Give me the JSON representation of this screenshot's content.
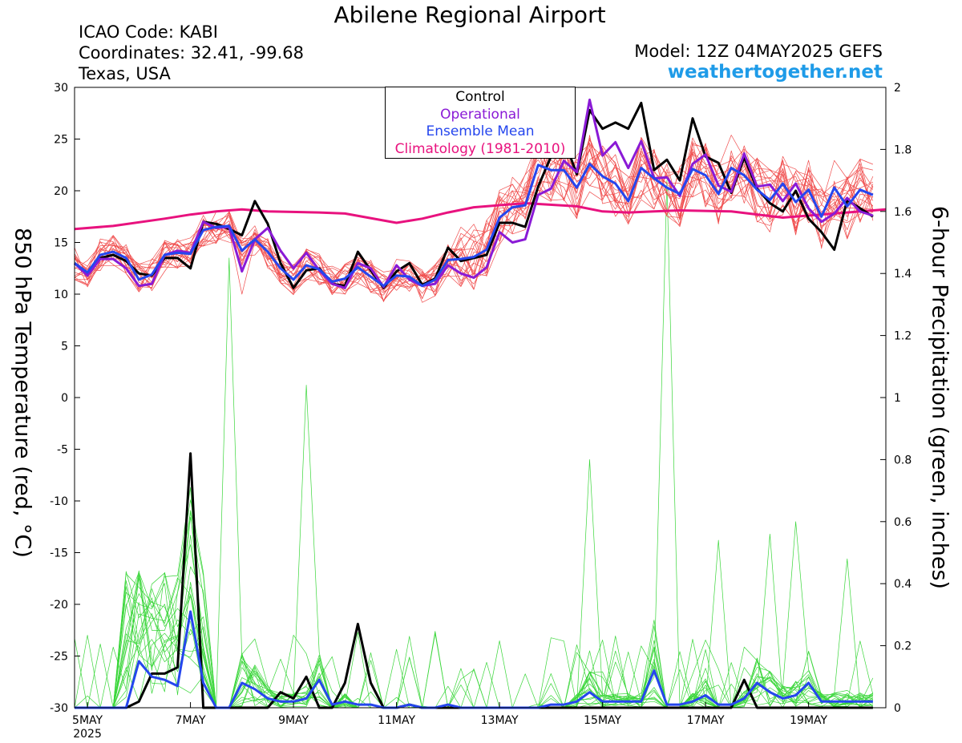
{
  "header": {
    "title": "Abilene Regional Airport",
    "icao": "ICAO Code: KABI",
    "coords": "Coordinates: 32.41, -99.68",
    "region": "Texas, USA",
    "model": "Model: 12Z 04MAY2025 GEFS",
    "site": "weathertogether.net"
  },
  "colors": {
    "control": "#000000",
    "operational": "#8a1ad6",
    "ensemble_mean": "#2546ee",
    "climatology": "#e8127e",
    "members_temp": "#f04e4e",
    "members_precip": "#3ad63a",
    "site": "#1e9be8"
  },
  "chart_data": {
    "type": "line",
    "title": "Abilene Regional Airport",
    "ylabel": "850 hPa Temperature (red, °C)",
    "y2label": "6-hour Precipitation (green, inches)",
    "ylim": [
      -30,
      30
    ],
    "y2lim": [
      0,
      2
    ],
    "yticks": [
      30,
      25,
      20,
      15,
      10,
      5,
      0,
      -5,
      -10,
      -15,
      -20,
      -25,
      -30
    ],
    "y2ticks": [
      2,
      1.8,
      1.6,
      1.4,
      1.2,
      1,
      0.8,
      0.6,
      0.4,
      0.2,
      0
    ],
    "xlim": [
      4.75,
      20.5
    ],
    "xticks": [
      {
        "x": 5,
        "label": "5MAY",
        "sub": "2025"
      },
      {
        "x": 7,
        "label": "7MAY",
        "sub": ""
      },
      {
        "x": 9,
        "label": "9MAY",
        "sub": ""
      },
      {
        "x": 11,
        "label": "11MAY",
        "sub": ""
      },
      {
        "x": 13,
        "label": "13MAY",
        "sub": ""
      },
      {
        "x": 15,
        "label": "15MAY",
        "sub": ""
      },
      {
        "x": 17,
        "label": "17MAY",
        "sub": ""
      },
      {
        "x": 19,
        "label": "19MAY",
        "sub": ""
      }
    ],
    "x_unit": "day of May 2025 (fractional, 6-hourly steps from 4.75 = 04MAY 18Z)",
    "legend": {
      "position": "top-center",
      "entries": [
        {
          "label": "Control",
          "color": "#000000"
        },
        {
          "label": "Operational",
          "color": "#8a1ad6"
        },
        {
          "label": "Ensemble Mean",
          "color": "#2546ee"
        },
        {
          "label": "Climatology (1981-2010)",
          "color": "#e8127e"
        }
      ]
    },
    "temperature": {
      "control": [
        13.0,
        12.0,
        13.5,
        13.8,
        13.2,
        12.0,
        11.8,
        13.5,
        13.5,
        12.5,
        17.0,
        16.8,
        16.3,
        15.7,
        19.0,
        16.8,
        13.0,
        10.6,
        12.3,
        12.5,
        11.0,
        10.8,
        14.1,
        12.3,
        10.6,
        12.2,
        13.0,
        10.9,
        11.5,
        14.5,
        13.2,
        13.5,
        13.8,
        16.9,
        16.9,
        16.5,
        20.4,
        23.3,
        25.0,
        21.6,
        27.8,
        26.0,
        26.6,
        26.0,
        28.5,
        22.0,
        23.0,
        21.0,
        27.0,
        23.3,
        22.7,
        19.8,
        23.2,
        20.2,
        18.8,
        18.0,
        20.0,
        17.3,
        16.0,
        14.3,
        19.1,
        18.3,
        17.5
      ],
      "operational": [
        13.0,
        11.8,
        13.4,
        13.4,
        12.5,
        10.8,
        11.0,
        13.8,
        14.2,
        14.0,
        17.0,
        16.4,
        16.5,
        12.2,
        15.3,
        16.4,
        14.2,
        12.5,
        14.0,
        12.3,
        11.0,
        10.6,
        13.0,
        12.5,
        10.7,
        12.8,
        11.4,
        10.8,
        11.0,
        12.8,
        12.0,
        11.6,
        12.6,
        16.0,
        15.0,
        15.3,
        19.6,
        20.2,
        22.9,
        21.8,
        28.8,
        23.4,
        24.7,
        22.2,
        24.8,
        21.2,
        21.3,
        19.5,
        22.6,
        23.5,
        20.5,
        19.9,
        23.6,
        20.4,
        20.6,
        19.0,
        20.7,
        18.3,
        17.0,
        17.8,
        19.3,
        18.0,
        17.6
      ],
      "mean": [
        13.0,
        12.1,
        13.8,
        14.1,
        13.5,
        11.4,
        11.9,
        13.8,
        14.0,
        13.9,
        16.2,
        16.5,
        16.6,
        14.2,
        15.3,
        14.1,
        12.5,
        11.4,
        12.8,
        12.4,
        11.2,
        11.5,
        12.6,
        11.7,
        10.8,
        11.8,
        11.7,
        10.8,
        11.4,
        13.3,
        13.4,
        13.6,
        14.3,
        17.4,
        18.4,
        18.6,
        22.5,
        22.0,
        22.0,
        20.3,
        22.6,
        21.4,
        20.7,
        19.0,
        22.2,
        21.2,
        20.3,
        19.7,
        22.1,
        21.5,
        19.7,
        22.2,
        21.5,
        20.1,
        19.1,
        20.7,
        18.9,
        20.1,
        17.5,
        20.3,
        18.5,
        20.1,
        19.6
      ],
      "climatology": [
        16.3,
        16.6,
        17.3,
        17.7,
        18.0,
        18.2,
        18.0,
        17.9,
        17.8,
        16.9,
        17.3,
        17.9,
        18.4,
        18.8,
        18.5,
        18.0,
        17.9,
        18.0,
        18.1,
        18.0,
        17.4,
        17.8,
        18.2
      ],
      "climatology_x": [
        4.75,
        5.5,
        6.5,
        7.0,
        7.5,
        8.0,
        8.5,
        9.5,
        10.0,
        11.0,
        11.5,
        12.0,
        12.5,
        13.5,
        14.5,
        15.0,
        15.5,
        16.0,
        16.5,
        17.5,
        18.5,
        19.5,
        20.5
      ]
    },
    "precipitation": {
      "control": [
        0,
        0,
        0,
        0,
        0,
        0.02,
        0.11,
        0.11,
        0.13,
        0.82,
        0,
        0,
        0,
        0,
        0,
        0,
        0.05,
        0.03,
        0.1,
        0,
        0,
        0.08,
        0.27,
        0.08,
        0,
        0,
        0.01,
        0,
        0,
        0,
        0,
        0,
        0,
        0,
        0,
        0,
        0,
        0,
        0,
        0,
        0,
        0,
        0,
        0,
        0,
        0,
        0,
        0,
        0,
        0,
        0,
        0,
        0.09,
        0,
        0,
        0,
        0,
        0,
        0,
        0,
        0,
        0,
        0
      ],
      "mean": [
        0,
        0,
        0,
        0,
        0,
        0.15,
        0.1,
        0.09,
        0.07,
        0.31,
        0.08,
        0,
        0,
        0.08,
        0.06,
        0.03,
        0.02,
        0.02,
        0.03,
        0.09,
        0.01,
        0.02,
        0.01,
        0.01,
        0,
        0,
        0.01,
        0,
        0,
        0.01,
        0,
        0,
        0,
        0,
        0,
        0,
        0,
        0.01,
        0.01,
        0.02,
        0.05,
        0.02,
        0.02,
        0.02,
        0.02,
        0.12,
        0.01,
        0.01,
        0.02,
        0.04,
        0.01,
        0.01,
        0.03,
        0.08,
        0.05,
        0.03,
        0.04,
        0.08,
        0.02,
        0.02,
        0.02,
        0.02,
        0.02
      ]
    },
    "members": {
      "count": 20,
      "temperature_spread_note": "red lines around ensemble mean",
      "precipitation_peak_values": [
        1.45,
        1.04,
        0.8,
        1.7,
        0.71,
        0.54,
        0.56,
        0.6,
        0.48
      ]
    }
  }
}
